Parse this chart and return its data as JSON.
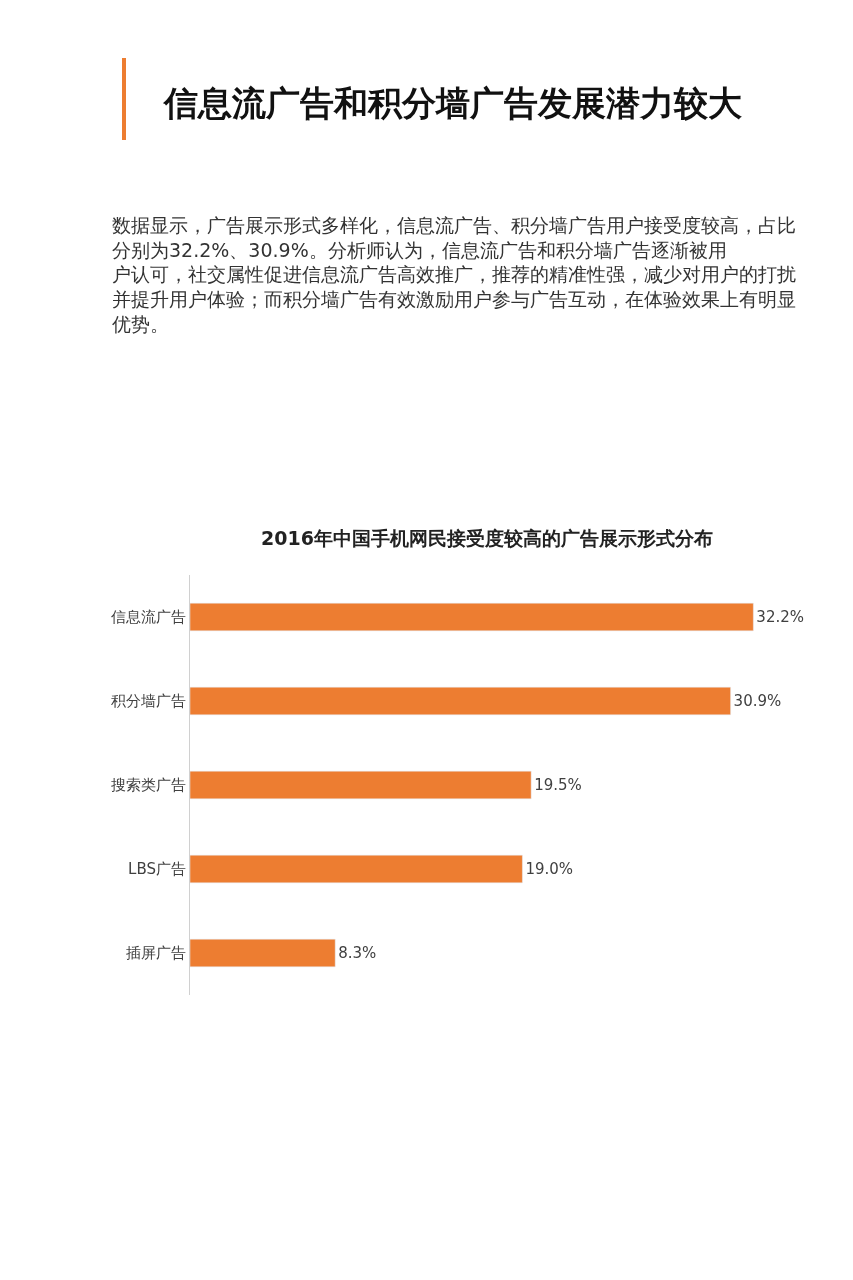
{
  "chart_data": {
    "type": "bar",
    "orientation": "horizontal",
    "title": "信息流广告和积分墙广告发展潜力较大",
    "subtitle": "2016年中国手机网民接受度较高的广告展示形式分布",
    "annotations": [
      "数据显示，广告展示形式多样化，信息流广告、积分墙广告用户接受度较高，占比分别为32.2%、30.9%。分析师认为，信息流广告和积分墙广告逐渐被用户认可，社交属性促进信息流广告高效推广，推荐的精准性强，减少对用户的打扰并提升用户体验；而积分墙广告有效激励用户参与广告互动，在体验效果上有明显优势。"
    ],
    "categories": [
      "信息流广告",
      "积分墙广告",
      "搜索类广告",
      "LBS广告",
      "插屏广告"
    ],
    "values": [
      32.2,
      30.9,
      19.5,
      19.0,
      8.3
    ],
    "value_labels": [
      "32.2%",
      "30.9%",
      "19.5%",
      "19.0%",
      "8.3%"
    ],
    "color": "#ed7d31",
    "tick_labels": "y",
    "legend": false
  }
}
